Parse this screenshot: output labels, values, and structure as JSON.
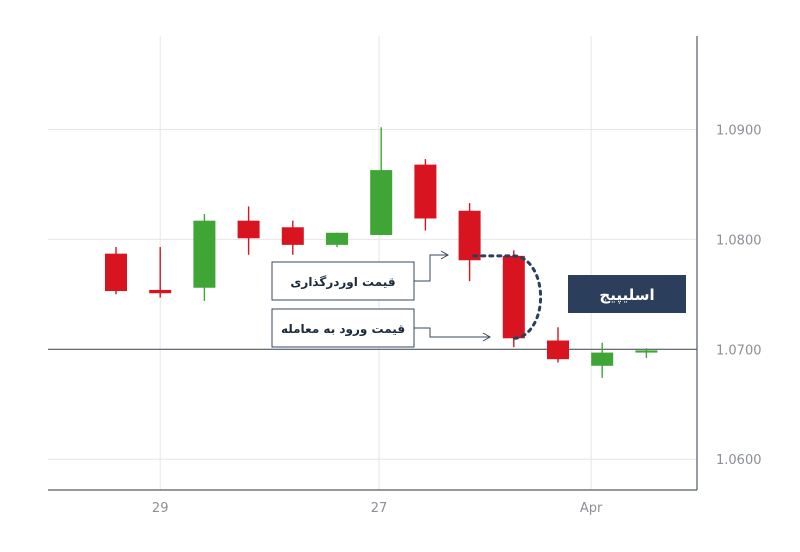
{
  "chart_data": {
    "type": "candlestick",
    "title": "",
    "xlabel": "",
    "ylabel": "",
    "ylim": [
      1.0572,
      1.0985
    ],
    "y_ticks": [
      "1.0900",
      "1.0800",
      "1.0700",
      "1.0600"
    ],
    "x_ticks": [
      {
        "label": "29",
        "index": 1.0
      },
      {
        "label": "27",
        "index": 5.95
      },
      {
        "label": "Apr",
        "index": 10.75
      }
    ],
    "grid": true,
    "colors": {
      "up": "#3fa535",
      "down": "#d7141f",
      "text": "#8c8f96",
      "axis": "#555b66"
    },
    "candles": [
      {
        "open": 1.0787,
        "high": 1.0793,
        "low": 1.075,
        "close": 1.0753
      },
      {
        "open": 1.0754,
        "high": 1.0793,
        "low": 1.0747,
        "close": 1.0751
      },
      {
        "open": 1.0756,
        "high": 1.0823,
        "low": 1.0744,
        "close": 1.0817
      },
      {
        "open": 1.0817,
        "high": 1.083,
        "low": 1.0786,
        "close": 1.0801
      },
      {
        "open": 1.0811,
        "high": 1.0817,
        "low": 1.0786,
        "close": 1.0795
      },
      {
        "open": 1.0795,
        "high": 1.0806,
        "low": 1.0793,
        "close": 1.0806
      },
      {
        "open": 1.0804,
        "high": 1.0902,
        "low": 1.0804,
        "close": 1.0863
      },
      {
        "open": 1.0868,
        "high": 1.0873,
        "low": 1.0808,
        "close": 1.0819
      },
      {
        "open": 1.0826,
        "high": 1.0833,
        "low": 1.0762,
        "close": 1.0781
      },
      {
        "open": 1.0785,
        "high": 1.079,
        "low": 1.0702,
        "close": 1.071
      },
      {
        "open": 1.0708,
        "high": 1.072,
        "low": 1.0688,
        "close": 1.0691
      },
      {
        "open": 1.0685,
        "high": 1.0706,
        "low": 1.0674,
        "close": 1.0697
      },
      {
        "open": 1.0697,
        "high": 1.0701,
        "low": 1.0692,
        "close": 1.0699
      }
    ],
    "reference_line": 1.07,
    "annotations": {
      "order_price": "قیمت اوردرگذاری",
      "entry_price": "قیمت ورود به معامله",
      "callout": "اسلیپیج"
    }
  }
}
